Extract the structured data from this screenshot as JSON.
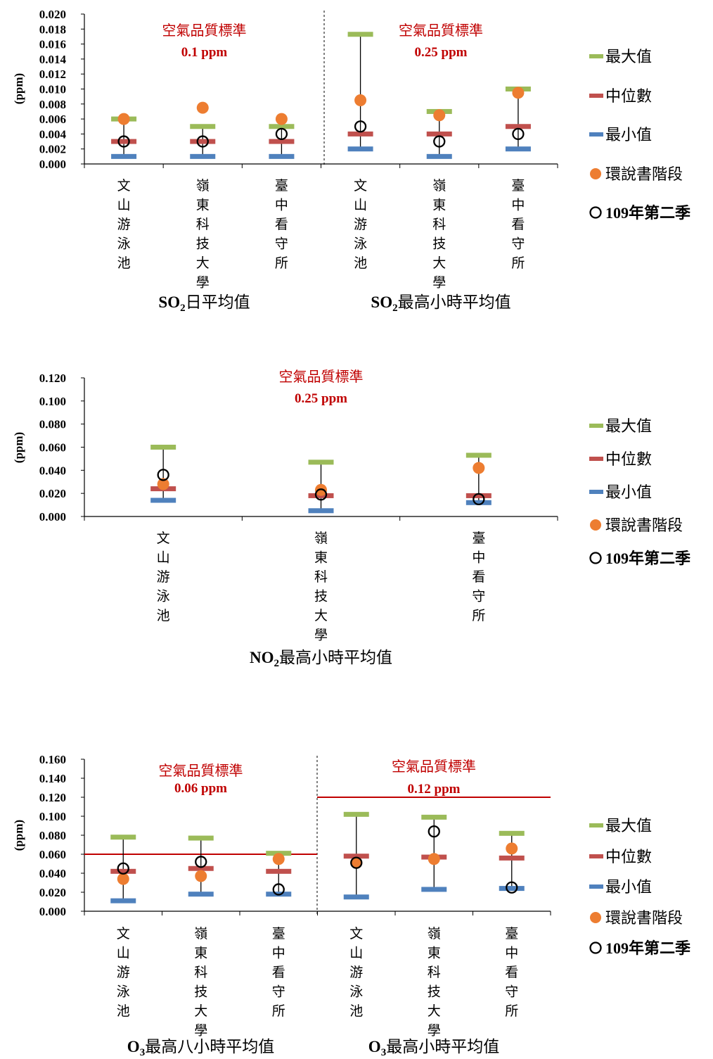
{
  "legend": {
    "max": "最大值",
    "median": "中位數",
    "min": "最小值",
    "eia": "環說書階段",
    "q2": "109年第二季"
  },
  "colors": {
    "max": "#9bbb59",
    "median": "#c0504d",
    "min": "#4f81bd",
    "eia": "#ed7d31",
    "q2": "#000000",
    "standard": "#c00000"
  },
  "chart_data": [
    {
      "type": "scatter",
      "ylabel": "(ppm)",
      "ylim": [
        0,
        0.02
      ],
      "yticks": [
        "0.000",
        "0.002",
        "0.004",
        "0.006",
        "0.008",
        "0.010",
        "0.012",
        "0.014",
        "0.016",
        "0.018",
        "0.020"
      ],
      "groups": [
        {
          "title_main": "SO",
          "title_sub": "2",
          "title_rest": "日平均值",
          "standard_label": "空氣品質標準",
          "standard_value": "0.1 ppm",
          "standard_line": null,
          "categories": [
            "文山游泳池",
            "嶺東科技大學",
            "臺中看守所"
          ],
          "max": [
            0.006,
            0.005,
            0.005
          ],
          "median": [
            0.003,
            0.003,
            0.003
          ],
          "min": [
            0.001,
            0.001,
            0.001
          ],
          "eia": [
            0.006,
            0.0075,
            0.006
          ],
          "q2": [
            0.003,
            0.003,
            0.004
          ]
        },
        {
          "title_main": "SO",
          "title_sub": "2",
          "title_rest": "最高小時平均值",
          "standard_label": "空氣品質標準",
          "standard_value": "0.25 ppm",
          "standard_line": null,
          "categories": [
            "文山游泳池",
            "嶺東科技大學",
            "臺中看守所"
          ],
          "max": [
            0.0173,
            0.007,
            0.01
          ],
          "median": [
            0.004,
            0.004,
            0.005
          ],
          "min": [
            0.002,
            0.001,
            0.002
          ],
          "eia": [
            0.0085,
            0.0065,
            0.0095
          ],
          "q2": [
            0.005,
            0.003,
            0.004
          ]
        }
      ]
    },
    {
      "type": "scatter",
      "ylabel": "(ppm)",
      "ylim": [
        0,
        0.12
      ],
      "yticks": [
        "0.000",
        "0.020",
        "0.040",
        "0.060",
        "0.080",
        "0.100",
        "0.120"
      ],
      "groups": [
        {
          "title_main": "NO",
          "title_sub": "2",
          "title_rest": "最高小時平均值",
          "standard_label": "空氣品質標準",
          "standard_value": "0.25 ppm",
          "standard_line": null,
          "categories": [
            "文山游泳池",
            "嶺東科技大學",
            "臺中看守所"
          ],
          "max": [
            0.06,
            0.047,
            0.053
          ],
          "median": [
            0.024,
            0.018,
            0.018
          ],
          "min": [
            0.014,
            0.005,
            0.012
          ],
          "eia": [
            0.028,
            0.023,
            0.042
          ],
          "q2": [
            0.036,
            0.019,
            0.015
          ]
        }
      ]
    },
    {
      "type": "scatter",
      "ylabel": "(ppm)",
      "ylim": [
        0,
        0.16
      ],
      "yticks": [
        "0.000",
        "0.020",
        "0.040",
        "0.060",
        "0.080",
        "0.100",
        "0.120",
        "0.140",
        "0.160"
      ],
      "groups": [
        {
          "title_main": "O",
          "title_sub": "3",
          "title_rest": "最高八小時平均值",
          "standard_label": "空氣品質標準",
          "standard_value": "0.06 ppm",
          "standard_line": 0.06,
          "categories": [
            "文山游泳池",
            "嶺東科技大學",
            "臺中看守所"
          ],
          "max": [
            0.078,
            0.077,
            0.061
          ],
          "median": [
            0.042,
            0.045,
            0.042
          ],
          "min": [
            0.011,
            0.018,
            0.018
          ],
          "eia": [
            0.034,
            0.037,
            0.055
          ],
          "q2": [
            0.045,
            0.052,
            0.023
          ]
        },
        {
          "title_main": "O",
          "title_sub": "3",
          "title_rest": "最高小時平均值",
          "standard_label": "空氣品質標準",
          "standard_value": "0.12 ppm",
          "standard_line": 0.12,
          "categories": [
            "文山游泳池",
            "嶺東科技大學",
            "臺中看守所"
          ],
          "max": [
            0.102,
            0.099,
            0.082
          ],
          "median": [
            0.058,
            0.057,
            0.056
          ],
          "min": [
            0.015,
            0.023,
            0.024
          ],
          "eia": [
            0.051,
            0.055,
            0.066
          ],
          "q2": [
            0.051,
            0.084,
            0.025
          ]
        }
      ]
    }
  ]
}
